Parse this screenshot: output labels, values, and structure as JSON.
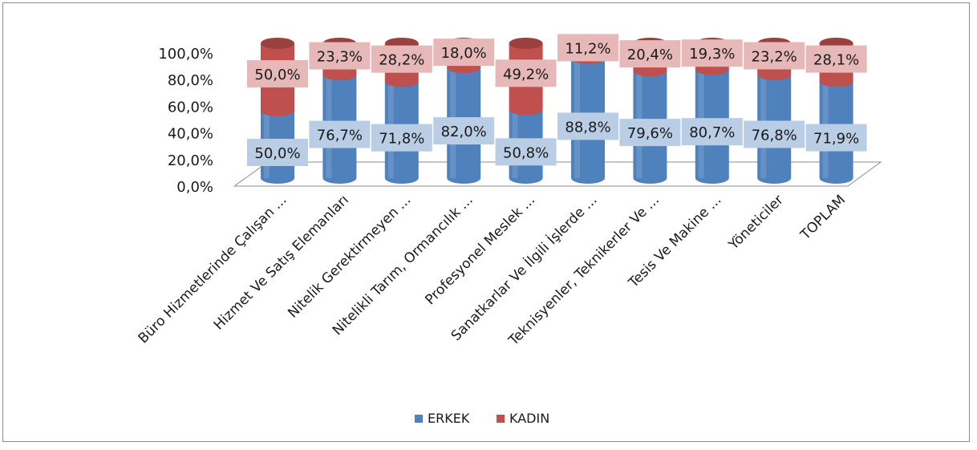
{
  "chart_data": {
    "type": "bar",
    "stacked": true,
    "percent_stacked": true,
    "style": "3d-cylinder",
    "title": "",
    "xlabel": "",
    "ylabel": "",
    "ylim": [
      0,
      100
    ],
    "y_ticks": [
      "0,0%",
      "20,0%",
      "40,0%",
      "60,0%",
      "80,0%",
      "100,0%"
    ],
    "grid": false,
    "legend_position": "bottom",
    "categories": [
      "Büro Hizmetlerinde Çalışan ...",
      "Hizmet Ve Satış Elemanları",
      "Nitelik Gerektirmeyen ...",
      "Nitelikli Tarım, Ormancılık ...",
      "Profesyonel Meslek ...",
      "Sanatkarlar Ve İlgili İşlerde ...",
      "Teknisyenler, Teknikerler Ve ...",
      "Tesis Ve Makine ...",
      "Yöneticiler",
      "TOPLAM"
    ],
    "series": [
      {
        "name": "ERKEK",
        "color": "#4f81bd",
        "values": [
          50.0,
          76.7,
          71.8,
          82.0,
          50.8,
          88.8,
          79.6,
          80.7,
          76.8,
          71.9
        ],
        "labels": [
          "50,0%",
          "76,7%",
          "71,8%",
          "82,0%",
          "50,8%",
          "88,8%",
          "79,6%",
          "80,7%",
          "76,8%",
          "71,9%"
        ],
        "label_bg": "#b9cde5"
      },
      {
        "name": "KADIN",
        "color": "#c0504d",
        "values": [
          50.0,
          23.3,
          28.2,
          18.0,
          49.2,
          11.2,
          20.4,
          19.3,
          23.2,
          28.1
        ],
        "labels": [
          "50,0%",
          "23,3%",
          "28,2%",
          "18,0%",
          "49,2%",
          "11,2%",
          "20,4%",
          "19,3%",
          "23,2%",
          "28,1%"
        ],
        "label_bg": "#e6b9b8"
      }
    ]
  }
}
